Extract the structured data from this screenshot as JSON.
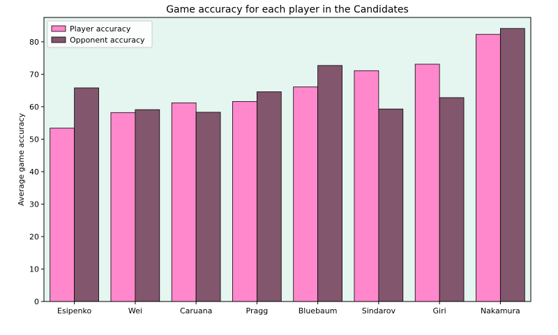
{
  "chart_data": {
    "type": "bar",
    "title": "Game accuracy for each player in the Candidates",
    "xlabel": "",
    "ylabel": "Average game accuracy",
    "categories": [
      "Esipenko",
      "Wei",
      "Caruana",
      "Pragg",
      "Bluebaum",
      "Sindarov",
      "Giri",
      "Nakamura"
    ],
    "series": [
      {
        "name": "Player accuracy",
        "color": "#ff88cc",
        "values": [
          53.4,
          58.2,
          61.2,
          61.6,
          66.1,
          71.1,
          73.1,
          82.3
        ]
      },
      {
        "name": "Opponent accuracy",
        "color": "#82566c",
        "values": [
          65.8,
          59.1,
          58.3,
          64.6,
          72.7,
          59.3,
          62.8,
          84.1
        ]
      }
    ],
    "ylim": [
      0,
      87.5
    ],
    "yticks": [
      0,
      10,
      20,
      30,
      40,
      50,
      60,
      70,
      80
    ],
    "plot_background": "#e5f5f0",
    "legend_position": "top-left",
    "grid": false
  }
}
